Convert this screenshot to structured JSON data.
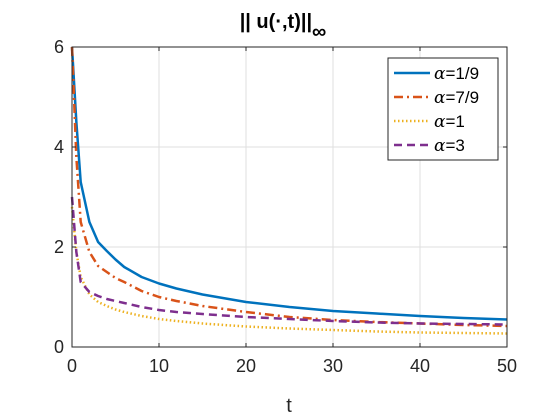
{
  "chart_data": {
    "type": "line",
    "title": "|| u(·,t)||",
    "title_subscript": "∞",
    "xlabel": "t",
    "ylabel": "",
    "xlim": [
      0,
      50
    ],
    "ylim": [
      0,
      6
    ],
    "xticks": [
      0,
      10,
      20,
      30,
      40,
      50
    ],
    "yticks": [
      0,
      2,
      4,
      6
    ],
    "grid": true,
    "legend_position": "top-right",
    "series": [
      {
        "name": "α=1/9",
        "color": "#0072BD",
        "line_style": "solid",
        "x": [
          0,
          0.5,
          1,
          2,
          3,
          4,
          5,
          6,
          8,
          10,
          12,
          15,
          20,
          25,
          30,
          35,
          40,
          45,
          50
        ],
        "y": [
          6.0,
          4.5,
          3.3,
          2.5,
          2.1,
          1.92,
          1.75,
          1.6,
          1.4,
          1.27,
          1.17,
          1.05,
          0.9,
          0.8,
          0.72,
          0.67,
          0.62,
          0.58,
          0.55
        ]
      },
      {
        "name": "α=7/9",
        "color": "#D95319",
        "line_style": "dashdot",
        "x": [
          0,
          0.5,
          1,
          2,
          3,
          4,
          5,
          6,
          8,
          10,
          12,
          15,
          20,
          25,
          30,
          35,
          40,
          45,
          50
        ],
        "y": [
          6.0,
          3.8,
          2.5,
          1.9,
          1.62,
          1.5,
          1.38,
          1.3,
          1.12,
          1.0,
          0.92,
          0.82,
          0.7,
          0.6,
          0.54,
          0.5,
          0.47,
          0.44,
          0.42
        ]
      },
      {
        "name": "α=1",
        "color": "#EDB120",
        "line_style": "dotted",
        "x": [
          0,
          0.5,
          1,
          2,
          3,
          4,
          5,
          6,
          8,
          10,
          12,
          15,
          20,
          25,
          30,
          35,
          40,
          45,
          50
        ],
        "y": [
          2.8,
          1.9,
          1.4,
          1.05,
          0.9,
          0.82,
          0.75,
          0.7,
          0.62,
          0.56,
          0.52,
          0.47,
          0.41,
          0.37,
          0.34,
          0.31,
          0.29,
          0.28,
          0.27
        ]
      },
      {
        "name": "α=3",
        "color": "#7E2F8E",
        "line_style": "dashed",
        "x": [
          0,
          0.5,
          1,
          2,
          3,
          4,
          5,
          6,
          8,
          10,
          12,
          15,
          20,
          25,
          30,
          35,
          40,
          45,
          50
        ],
        "y": [
          3.0,
          1.9,
          1.3,
          1.1,
          1.02,
          0.96,
          0.92,
          0.88,
          0.8,
          0.74,
          0.7,
          0.66,
          0.6,
          0.56,
          0.52,
          0.49,
          0.47,
          0.46,
          0.45
        ]
      }
    ]
  }
}
